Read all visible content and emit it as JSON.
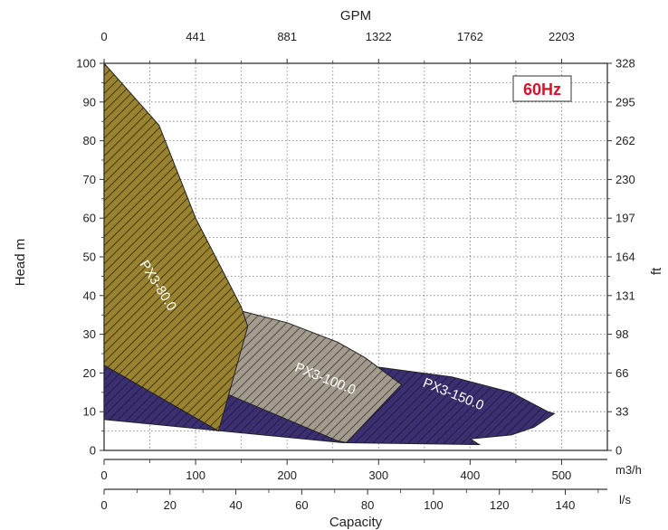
{
  "chart_data": {
    "type": "area",
    "frequency_label": "60Hz",
    "axes": {
      "x_bottom_primary": {
        "label": "m3/h",
        "range": [
          0,
          550
        ],
        "ticks": [
          0,
          100,
          200,
          300,
          400,
          500
        ],
        "minor_step": 50
      },
      "x_bottom_secondary": {
        "label": "l/s",
        "title": "Capacity",
        "range": [
          0,
          152.78
        ],
        "ticks": [
          0,
          20,
          40,
          60,
          80,
          100,
          120,
          140
        ],
        "minor_step": 10
      },
      "x_top": {
        "label": "GPM",
        "ticks": [
          0,
          441,
          881,
          1322,
          1762,
          2203
        ]
      },
      "y_left": {
        "label": "Head m",
        "range": [
          0,
          100
        ],
        "ticks": [
          0,
          10,
          20,
          30,
          40,
          50,
          60,
          70,
          80,
          90,
          100
        ]
      },
      "y_right": {
        "label": "ft",
        "ticks": [
          0,
          33,
          66,
          98,
          131,
          164,
          197,
          230,
          262,
          295,
          328
        ]
      }
    },
    "grid": true,
    "series": [
      {
        "name": "PX3-150.0",
        "color": "#3b2f70",
        "hatch": "#1d1540",
        "points": [
          [
            0,
            22
          ],
          [
            0,
            8
          ],
          [
            130,
            5
          ],
          [
            260,
            2
          ],
          [
            410,
            1.5
          ],
          [
            400,
            3
          ],
          [
            445,
            4
          ],
          [
            470,
            6
          ],
          [
            492,
            9.5
          ],
          [
            485,
            10
          ],
          [
            445,
            15
          ],
          [
            380,
            19
          ],
          [
            300,
            21.5
          ],
          [
            250,
            17
          ],
          [
            120,
            16
          ]
        ]
      },
      {
        "name": "PX3-100.0",
        "color": "#a39c8e",
        "hatch": "#3a352c",
        "points": [
          [
            0,
            40
          ],
          [
            0,
            22
          ],
          [
            120,
            16
          ],
          [
            255,
            2.5
          ],
          [
            265,
            2
          ],
          [
            325,
            17
          ],
          [
            285,
            24
          ],
          [
            255,
            28
          ],
          [
            200,
            33
          ],
          [
            150,
            36
          ],
          [
            130,
            37
          ],
          [
            100,
            32
          ],
          [
            0,
            40
          ]
        ]
      },
      {
        "name": "PX3-80.0",
        "color": "#9a8330",
        "hatch": "#2e2508",
        "points": [
          [
            0,
            100
          ],
          [
            60,
            84
          ],
          [
            100,
            60
          ],
          [
            150,
            37
          ],
          [
            157,
            32
          ],
          [
            125,
            5
          ],
          [
            0,
            22
          ]
        ]
      }
    ],
    "region_labels": [
      {
        "text": "PX3-80.0",
        "x": 55,
        "y": 42,
        "angle": 58
      },
      {
        "text": "PX3-100.0",
        "x": 240,
        "y": 17.5,
        "angle": 22
      },
      {
        "text": "PX3-150.0",
        "x": 380,
        "y": 13.5,
        "angle": 22
      }
    ]
  }
}
